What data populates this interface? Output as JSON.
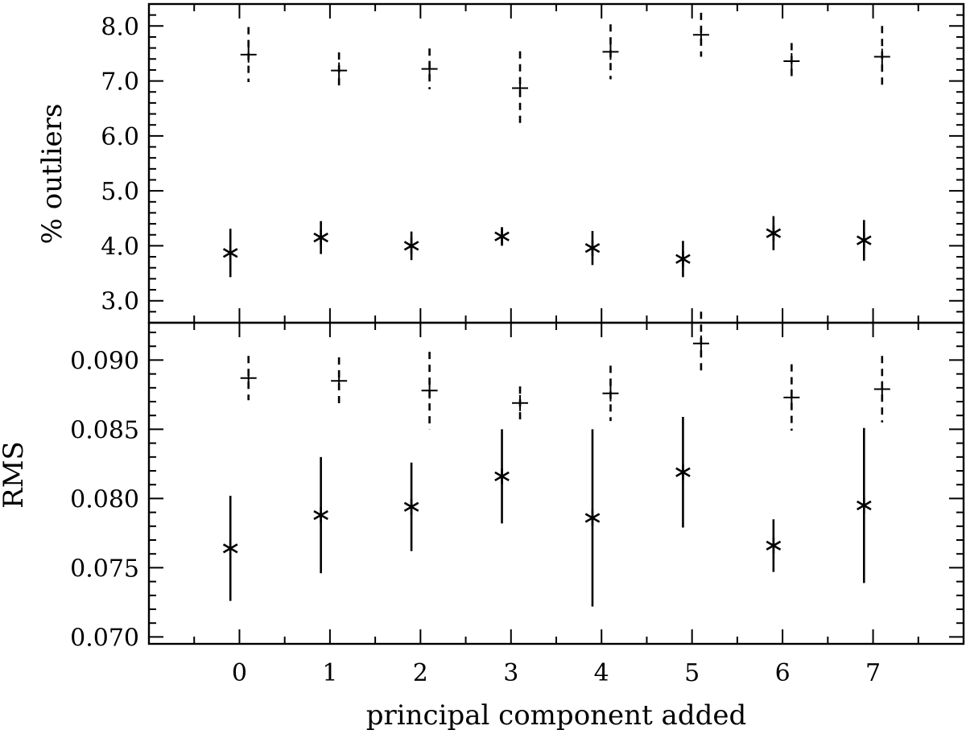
{
  "chart_data": [
    {
      "type": "scatter",
      "panel": "top",
      "ylabel": "% outliers",
      "ylim": [
        2.6,
        8.4
      ],
      "yticks": [
        3.0,
        4.0,
        5.0,
        6.0,
        7.0,
        8.0
      ],
      "ytick_labels": [
        "3.0",
        "4.0",
        "5.0",
        "6.0",
        "7.0",
        "8.0"
      ],
      "series": [
        {
          "marker": "asterisk",
          "errorbar_style": "solid",
          "points": [
            {
              "x": 0,
              "y": 3.87,
              "err": 0.44
            },
            {
              "x": 1,
              "y": 4.15,
              "err": 0.3
            },
            {
              "x": 2,
              "y": 4.0,
              "err": 0.26
            },
            {
              "x": 3,
              "y": 4.17,
              "err": 0.17
            },
            {
              "x": 4,
              "y": 3.96,
              "err": 0.31
            },
            {
              "x": 5,
              "y": 3.76,
              "err": 0.33
            },
            {
              "x": 6,
              "y": 4.23,
              "err": 0.31
            },
            {
              "x": 7,
              "y": 4.1,
              "err": 0.37
            }
          ]
        },
        {
          "marker": "plus",
          "errorbar_style": "dashed",
          "points": [
            {
              "x": 0,
              "y": 7.48,
              "err": 0.5
            },
            {
              "x": 1,
              "y": 7.19,
              "err": 0.33
            },
            {
              "x": 2,
              "y": 7.22,
              "err": 0.37
            },
            {
              "x": 3,
              "y": 6.87,
              "err": 0.67
            },
            {
              "x": 4,
              "y": 7.53,
              "err": 0.5
            },
            {
              "x": 5,
              "y": 7.84,
              "err": 0.4
            },
            {
              "x": 6,
              "y": 7.36,
              "err": 0.33
            },
            {
              "x": 7,
              "y": 7.44,
              "err": 0.56
            }
          ]
        }
      ]
    },
    {
      "type": "scatter",
      "panel": "bottom",
      "ylabel": "RMS",
      "xlabel": "principal component added",
      "ylim": [
        0.0695,
        0.0927
      ],
      "yticks": [
        0.07,
        0.075,
        0.08,
        0.085,
        0.09
      ],
      "ytick_labels": [
        "0.070",
        "0.075",
        "0.080",
        "0.085",
        "0.090"
      ],
      "series": [
        {
          "marker": "asterisk",
          "errorbar_style": "solid",
          "points": [
            {
              "x": 0,
              "y": 0.0764,
              "err": 0.0038
            },
            {
              "x": 1,
              "y": 0.0788,
              "err": 0.0042
            },
            {
              "x": 2,
              "y": 0.0794,
              "err": 0.0032
            },
            {
              "x": 3,
              "y": 0.0816,
              "err": 0.0034
            },
            {
              "x": 4,
              "y": 0.0786,
              "err": 0.0064
            },
            {
              "x": 5,
              "y": 0.0819,
              "err": 0.004
            },
            {
              "x": 6,
              "y": 0.0766,
              "err": 0.0019
            },
            {
              "x": 7,
              "y": 0.0795,
              "err": 0.0056
            }
          ]
        },
        {
          "marker": "plus",
          "errorbar_style": "dashed",
          "points": [
            {
              "x": 0,
              "y": 0.0887,
              "err": 0.0016
            },
            {
              "x": 1,
              "y": 0.0885,
              "err": 0.0017
            },
            {
              "x": 2,
              "y": 0.0878,
              "err": 0.0028
            },
            {
              "x": 3,
              "y": 0.0869,
              "err": 0.0012
            },
            {
              "x": 4,
              "y": 0.0876,
              "err": 0.002
            },
            {
              "x": 5,
              "y": 0.0912,
              "err": 0.0023
            },
            {
              "x": 6,
              "y": 0.0873,
              "err": 0.0024
            },
            {
              "x": 7,
              "y": 0.0879,
              "err": 0.0024
            }
          ]
        }
      ]
    }
  ],
  "x_axis": {
    "xlim": [
      -1,
      8
    ],
    "ticks": [
      0,
      1,
      2,
      3,
      4,
      5,
      6,
      7
    ],
    "tick_labels": [
      "0",
      "1",
      "2",
      "3",
      "4",
      "5",
      "6",
      "7"
    ],
    "series_offsets": [
      -0.1,
      0.1
    ]
  },
  "grid": false,
  "legend": "none"
}
